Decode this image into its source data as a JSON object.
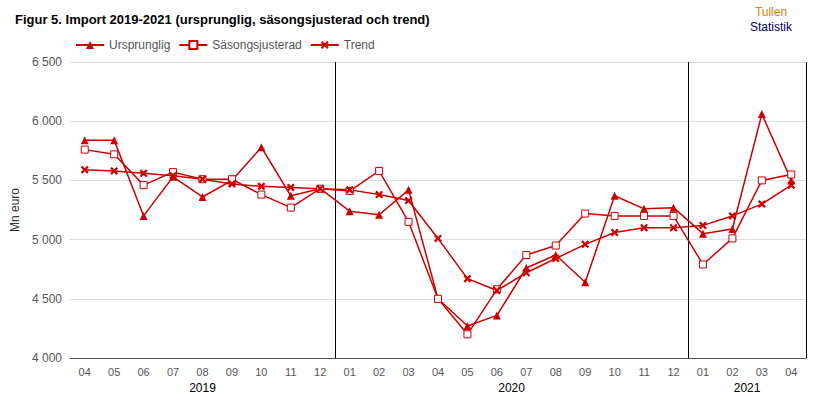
{
  "chart_data": {
    "type": "line",
    "title": "Figur 5. Import 2019-2021 (ursprunglig, säsongsjusterad och trend)",
    "subtitle": [
      {
        "text": "Tullen",
        "color": "#cc8800"
      },
      {
        "text": "Statistik",
        "color": "#000066"
      }
    ],
    "ylabel": "Mn euro",
    "annotations": [
      "2019",
      "2020",
      "2021"
    ],
    "categories": [
      "04",
      "05",
      "06",
      "07",
      "08",
      "09",
      "10",
      "11",
      "12",
      "01",
      "02",
      "03",
      "04",
      "05",
      "06",
      "07",
      "08",
      "09",
      "10",
      "11",
      "12",
      "01",
      "02",
      "03",
      "04"
    ],
    "series": [
      {
        "name": "Ursprunglig",
        "color": "#cc0000",
        "marker": "triangle",
        "values": [
          5840,
          5840,
          5200,
          5530,
          5360,
          5500,
          5780,
          5370,
          5430,
          5240,
          5210,
          5420,
          4500,
          4270,
          4360,
          4760,
          4870,
          4640,
          5370,
          5260,
          5270,
          5050,
          5090,
          6060,
          5500
        ]
      },
      {
        "name": "Säsongsjusterad",
        "color": "#cc0000",
        "marker": "hollow-square",
        "values": [
          5760,
          5720,
          5460,
          5570,
          5510,
          5510,
          5380,
          5270,
          5430,
          5410,
          5580,
          5150,
          4500,
          4200,
          4580,
          4870,
          4950,
          5220,
          5200,
          5200,
          5200,
          4790,
          5010,
          5500,
          5550
        ]
      },
      {
        "name": "Trend",
        "color": "#cc0000",
        "marker": "x",
        "values": [
          5590,
          5580,
          5560,
          5540,
          5510,
          5470,
          5450,
          5440,
          5430,
          5420,
          5380,
          5330,
          5010,
          4670,
          4570,
          4720,
          4840,
          4960,
          5060,
          5100,
          5100,
          5120,
          5200,
          5300,
          5460
        ]
      }
    ],
    "ylim": [
      4000,
      6500
    ],
    "yticks": [
      {
        "value": 4000,
        "label": "4 000"
      },
      {
        "value": 4500,
        "label": "4 500"
      },
      {
        "value": 5000,
        "label": "5 000"
      },
      {
        "value": 5500,
        "label": "5 500"
      },
      {
        "value": 6000,
        "label": "6 000"
      },
      {
        "value": 6500,
        "label": "6 500"
      }
    ],
    "grid": true,
    "legend": "upper left"
  }
}
